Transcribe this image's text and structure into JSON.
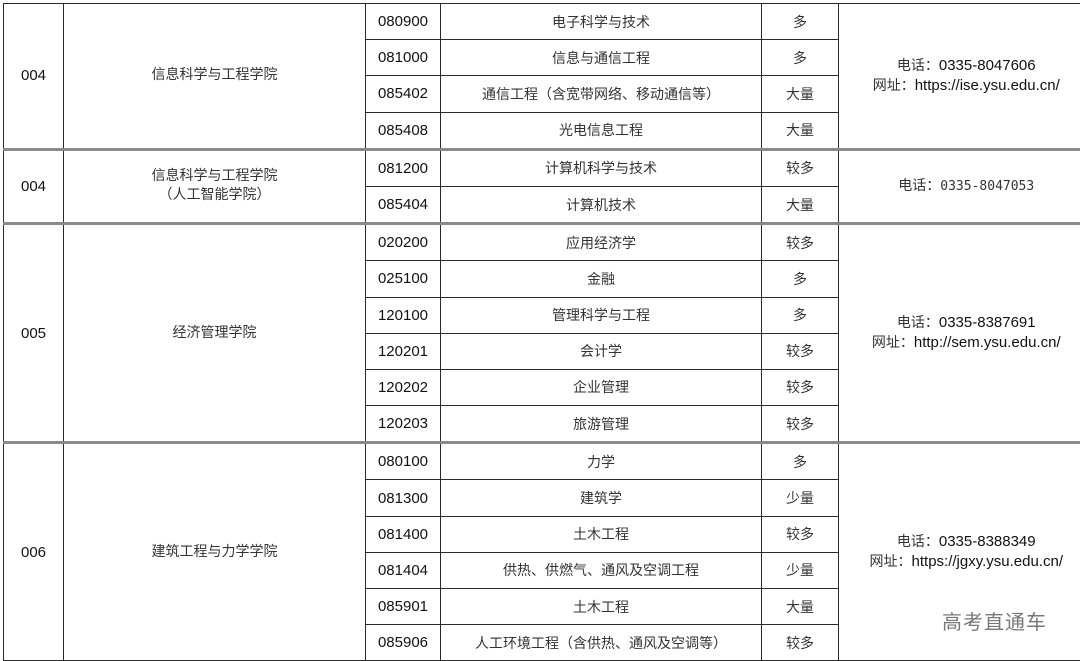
{
  "groups": [
    {
      "code": "004",
      "dept": [
        "信息科学与工程学院"
      ],
      "contact": {
        "phone_label": "电话：",
        "phone": "0335-8047606",
        "site_label": "网址：",
        "site": "https://ise.ysu.edu.cn/"
      },
      "rows": [
        [
          "080900",
          "电子科学与技术",
          "多"
        ],
        [
          "081000",
          "信息与通信工程",
          "多"
        ],
        [
          "085402",
          "通信工程（含宽带网络、移动通信等）",
          "大量"
        ],
        [
          "085408",
          "光电信息工程",
          "大量"
        ]
      ]
    },
    {
      "code": "004",
      "dept": [
        "信息科学与工程学院",
        "（人工智能学院）"
      ],
      "contact": {
        "phone_label": "电话：",
        "phone": "0335-8047053"
      },
      "rows": [
        [
          "081200",
          "计算机科学与技术",
          "较多"
        ],
        [
          "085404",
          "计算机技术",
          "大量"
        ]
      ]
    },
    {
      "code": "005",
      "dept": [
        "经济管理学院"
      ],
      "contact": {
        "phone_label": "电话：",
        "phone": "0335-8387691",
        "site_label": "网址：",
        "site": "http://sem.ysu.edu.cn/"
      },
      "rows": [
        [
          "020200",
          "应用经济学",
          "较多"
        ],
        [
          "025100",
          "金融",
          "多"
        ],
        [
          "120100",
          "管理科学与工程",
          "多"
        ],
        [
          "120201",
          "会计学",
          "较多"
        ],
        [
          "120202",
          "企业管理",
          "较多"
        ],
        [
          "120203",
          "旅游管理",
          "较多"
        ]
      ]
    },
    {
      "code": "006",
      "dept": [
        "建筑工程与力学学院"
      ],
      "contact": {
        "phone_label": "电话：",
        "phone": "0335-8388349",
        "site_label": "网址：",
        "site": "https://jgxy.ysu.edu.cn/"
      },
      "rows": [
        [
          "080100",
          "力学",
          "多"
        ],
        [
          "081300",
          "建筑学",
          "少量"
        ],
        [
          "081400",
          "土木工程",
          "较多"
        ],
        [
          "081404",
          "供热、供燃气、通风及空调工程",
          "少量"
        ],
        [
          "085901",
          "土木工程",
          "大量"
        ],
        [
          "085906",
          "人工环境工程（含供热、通风及空调等）",
          "较多"
        ]
      ]
    }
  ],
  "watermark": "高考直通车"
}
